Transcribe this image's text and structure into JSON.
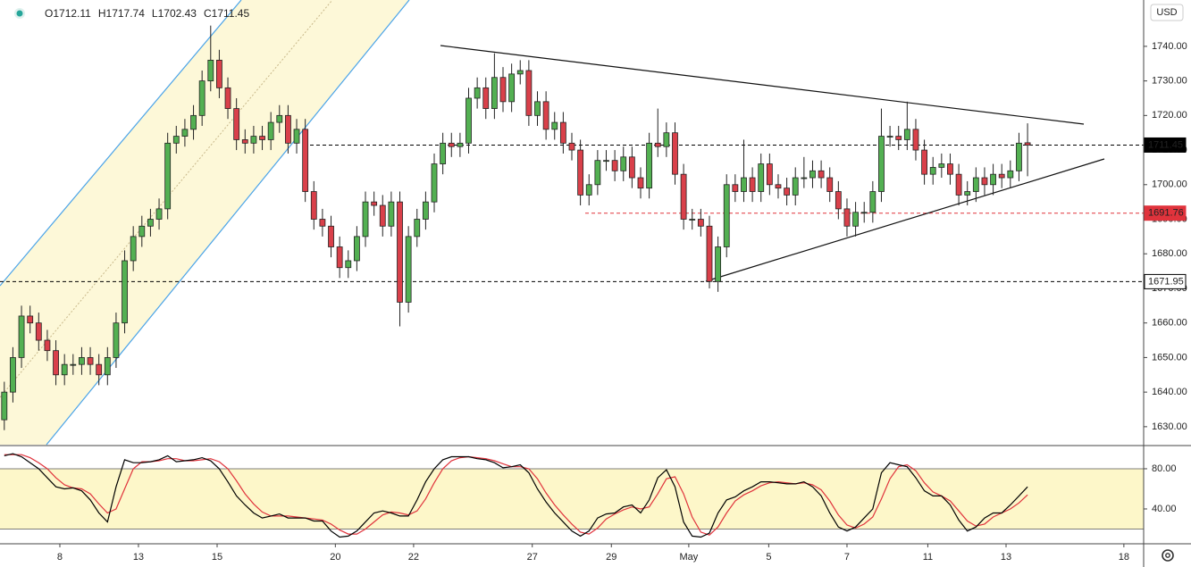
{
  "chart_data": [
    {
      "type": "candlestick",
      "currency": "USD",
      "header_labels": [
        "O",
        "H",
        "L",
        "C"
      ],
      "up_color": "#53b052",
      "down_color": "#d9404a",
      "open": [
        1632,
        1640,
        1650,
        1662,
        1660,
        1655,
        1652,
        1645,
        1648,
        1648,
        1650,
        1648,
        1645,
        1650,
        1660,
        1678,
        1685,
        1688,
        1690,
        1693,
        1712,
        1714,
        1716,
        1720,
        1730,
        1736,
        1728,
        1722,
        1713,
        1712,
        1714,
        1713,
        1718,
        1720,
        1712,
        1716,
        1698,
        1690,
        1688,
        1682,
        1676,
        1678,
        1685,
        1695,
        1694,
        1688,
        1695,
        1666,
        1685,
        1690,
        1695,
        1706,
        1712,
        1711,
        1712,
        1725,
        1728,
        1722,
        1731,
        1724,
        1732,
        1733,
        1720,
        1724,
        1716,
        1718,
        1712,
        1710,
        1697,
        1700,
        1707,
        1707,
        1704,
        1708,
        1702,
        1699,
        1712,
        1711,
        1715,
        1703,
        1690,
        1690,
        1688,
        1672,
        1682,
        1700,
        1698,
        1702,
        1698,
        1706,
        1700,
        1699,
        1697,
        1702,
        1702,
        1704,
        1702,
        1698,
        1693,
        1688,
        1692,
        1692,
        1698,
        1714,
        1714,
        1713,
        1716,
        1710,
        1703,
        1705,
        1706,
        1703,
        1697,
        1698,
        1702,
        1700,
        1703,
        1702,
        1704,
        1712.11
      ],
      "high": [
        1643,
        1653,
        1665,
        1665,
        1663,
        1658,
        1655,
        1651,
        1651,
        1653,
        1653,
        1651,
        1653,
        1663,
        1681,
        1688,
        1691,
        1693,
        1696,
        1715,
        1717,
        1719,
        1723,
        1733,
        1746,
        1739,
        1731,
        1725,
        1716,
        1717,
        1717,
        1721,
        1723,
        1723,
        1719,
        1719,
        1701,
        1693,
        1691,
        1685,
        1681,
        1688,
        1698,
        1698,
        1697,
        1698,
        1698,
        1688,
        1693,
        1698,
        1709,
        1715,
        1715,
        1715,
        1728,
        1731,
        1731,
        1738,
        1734,
        1735,
        1736,
        1736,
        1727,
        1727,
        1721,
        1721,
        1715,
        1713,
        1703,
        1710,
        1710,
        1710,
        1711,
        1711,
        1705,
        1715,
        1722,
        1718,
        1718,
        1706,
        1693,
        1693,
        1691,
        1685,
        1703,
        1703,
        1713,
        1705,
        1709,
        1709,
        1703,
        1702,
        1705,
        1708,
        1707,
        1707,
        1705,
        1701,
        1696,
        1695,
        1695,
        1701,
        1722,
        1717,
        1717,
        1724,
        1719,
        1713,
        1708,
        1709,
        1709,
        1706,
        1701,
        1705,
        1705,
        1706,
        1706,
        1707,
        1715,
        1717.74
      ],
      "low": [
        1629,
        1637,
        1647,
        1657,
        1652,
        1649,
        1642,
        1642,
        1645,
        1645,
        1645,
        1642,
        1642,
        1647,
        1657,
        1675,
        1682,
        1685,
        1687,
        1690,
        1709,
        1711,
        1713,
        1717,
        1727,
        1725,
        1719,
        1710,
        1709,
        1709,
        1710,
        1710,
        1715,
        1709,
        1709,
        1695,
        1687,
        1685,
        1679,
        1673,
        1673,
        1675,
        1682,
        1691,
        1685,
        1685,
        1659,
        1663,
        1682,
        1687,
        1692,
        1703,
        1708,
        1708,
        1709,
        1722,
        1719,
        1719,
        1721,
        1721,
        1729,
        1717,
        1717,
        1713,
        1713,
        1709,
        1707,
        1694,
        1694,
        1697,
        1704,
        1701,
        1701,
        1699,
        1696,
        1696,
        1708,
        1708,
        1700,
        1687,
        1687,
        1685,
        1670,
        1669,
        1679,
        1695,
        1695,
        1695,
        1695,
        1697,
        1696,
        1694,
        1694,
        1699,
        1699,
        1699,
        1695,
        1690,
        1685,
        1685,
        1689,
        1689,
        1695,
        1711,
        1710,
        1710,
        1707,
        1700,
        1700,
        1702,
        1700,
        1694,
        1694,
        1695,
        1697,
        1697,
        1699,
        1699,
        1701,
        1702.43
      ],
      "close": [
        1640,
        1650,
        1662,
        1660,
        1655,
        1652,
        1645,
        1648,
        1648,
        1650,
        1648,
        1645,
        1650,
        1660,
        1678,
        1685,
        1688,
        1690,
        1693,
        1712,
        1714,
        1716,
        1720,
        1730,
        1736,
        1728,
        1722,
        1713,
        1712,
        1714,
        1713,
        1718,
        1720,
        1712,
        1716,
        1698,
        1690,
        1688,
        1682,
        1676,
        1678,
        1685,
        1695,
        1694,
        1688,
        1695,
        1666,
        1685,
        1690,
        1695,
        1706,
        1712,
        1711,
        1712,
        1725,
        1728,
        1722,
        1731,
        1724,
        1732,
        1733,
        1720,
        1724,
        1716,
        1718,
        1712,
        1710,
        1697,
        1700,
        1707,
        1707,
        1704,
        1708,
        1702,
        1699,
        1712,
        1711,
        1715,
        1703,
        1690,
        1690,
        1688,
        1672,
        1682,
        1700,
        1698,
        1702,
        1698,
        1706,
        1700,
        1699,
        1697,
        1702,
        1702,
        1704,
        1702,
        1698,
        1693,
        1688,
        1692,
        1692,
        1698,
        1714,
        1714,
        1713,
        1716,
        1710,
        1703,
        1705,
        1706,
        1703,
        1697,
        1698,
        1702,
        1700,
        1703,
        1702,
        1704,
        1712,
        1711.45
      ],
      "xlim": [
        -0.5,
        132.5
      ],
      "xticks": [
        {
          "value": 6.46,
          "label": "8"
        },
        {
          "value": 15.6,
          "label": "13"
        },
        {
          "value": 24.75,
          "label": "15"
        },
        {
          "value": 38.5,
          "label": "20"
        },
        {
          "value": 47.6,
          "label": "22"
        },
        {
          "value": 61.4,
          "label": "27"
        },
        {
          "value": 70.6,
          "label": "29"
        },
        {
          "value": 79.6,
          "label": "May"
        },
        {
          "value": 88.9,
          "label": "5"
        },
        {
          "value": 98.0,
          "label": "7"
        },
        {
          "value": 107.4,
          "label": "11"
        },
        {
          "value": 116.5,
          "label": "13"
        },
        {
          "value": 130.2,
          "label": "18"
        }
      ],
      "ylim": [
        1624.8,
        1753.4
      ],
      "yticks": [
        {
          "value": 1630,
          "label": "1630.00"
        },
        {
          "value": 1640,
          "label": "1640.00"
        },
        {
          "value": 1650,
          "label": "1650.00"
        },
        {
          "value": 1660,
          "label": "1660.00"
        },
        {
          "value": 1670,
          "label": "1670.00"
        },
        {
          "value": 1680,
          "label": "1680.00"
        },
        {
          "value": 1690,
          "label": "1690.00"
        },
        {
          "value": 1700,
          "label": "1700.00"
        },
        {
          "value": 1710,
          "label": "1710.00"
        },
        {
          "value": 1720,
          "label": "1720.00"
        },
        {
          "value": 1730,
          "label": "1730.00"
        },
        {
          "value": 1740,
          "label": "1740.00"
        }
      ],
      "levels": [
        {
          "value": 1711.45,
          "color": "#000000"
        },
        {
          "value": 1691.76,
          "color": "#e0333c"
        },
        {
          "value": 1671.95,
          "color": "#000000"
        }
      ],
      "grid": false
    },
    {
      "type": "line",
      "series": [
        {
          "color": "#000000",
          "values": [
            93,
            95,
            92,
            86,
            80,
            71,
            62,
            60,
            61,
            58,
            49,
            36,
            27,
            62,
            89,
            86,
            86,
            87,
            89,
            93,
            87,
            88,
            89,
            91,
            88,
            80,
            67,
            53,
            44,
            36,
            31,
            33,
            35,
            31,
            31,
            31,
            28,
            28,
            18,
            12,
            13,
            18,
            27,
            36,
            38,
            36,
            33,
            33,
            49,
            67,
            80,
            89,
            92,
            92,
            92,
            90,
            89,
            86,
            81,
            82,
            84,
            76,
            60,
            47,
            36,
            27,
            18,
            13,
            18,
            31,
            35,
            36,
            42,
            44,
            36,
            49,
            71,
            79,
            62,
            27,
            13,
            12,
            16,
            36,
            49,
            52,
            58,
            62,
            67,
            67,
            66,
            65,
            65,
            67,
            62,
            53,
            36,
            22,
            18,
            22,
            31,
            40,
            76,
            86,
            84,
            82,
            71,
            58,
            53,
            53,
            44,
            29,
            18,
            22,
            31,
            36,
            36,
            44,
            53,
            62
          ]
        },
        {
          "color": "#e0333c",
          "values": [
            94,
            94,
            94,
            91,
            86,
            80,
            71,
            64,
            61,
            60,
            55,
            45,
            36,
            40,
            60,
            80,
            87,
            87,
            88,
            90,
            90,
            88,
            88,
            89,
            90,
            87,
            80,
            68,
            55,
            45,
            37,
            33,
            33,
            33,
            32,
            31,
            30,
            29,
            25,
            19,
            15,
            15,
            20,
            27,
            34,
            37,
            36,
            34,
            38,
            50,
            66,
            80,
            88,
            91,
            92,
            91,
            90,
            88,
            85,
            82,
            82,
            80,
            70,
            56,
            44,
            34,
            25,
            17,
            15,
            21,
            30,
            35,
            39,
            42,
            40,
            42,
            55,
            70,
            72,
            55,
            32,
            17,
            14,
            22,
            36,
            48,
            54,
            58,
            63,
            66,
            67,
            66,
            65,
            66,
            64,
            59,
            48,
            34,
            24,
            21,
            25,
            32,
            50,
            70,
            82,
            84,
            78,
            66,
            57,
            53,
            48,
            38,
            28,
            23,
            25,
            32,
            36,
            40,
            46,
            54
          ]
        }
      ],
      "ylim": [
        6.2,
        102.2
      ],
      "yticks": [
        {
          "value": 40,
          "label": "40.00"
        },
        {
          "value": 80,
          "label": "80.00"
        }
      ],
      "band": [
        20,
        80
      ],
      "band_color": "#fdf7c9"
    }
  ]
}
